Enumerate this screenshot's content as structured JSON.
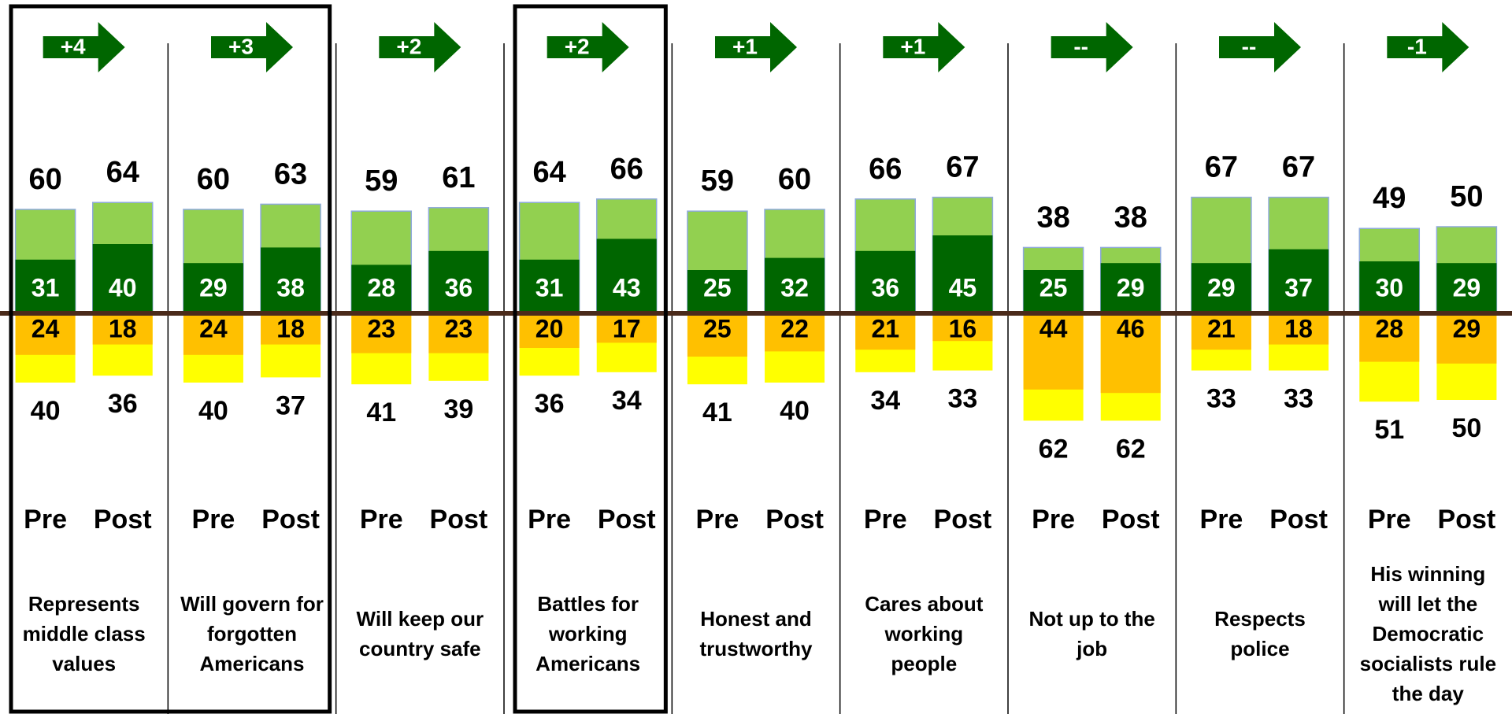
{
  "chart_data": {
    "type": "diverging_bar",
    "groups": [
      "Represents middle class values",
      "Will govern for forgotten Americans",
      "Will keep our country safe",
      "Battles for working Americans",
      "Honest and trustworthy",
      "Cares about working people",
      "Not up to the job",
      "Respects police",
      "His winning will let the Democratic socialists rule the day"
    ],
    "changes": [
      "+4",
      "+3",
      "+2",
      "+2",
      "+1",
      "+1",
      "--",
      "--",
      "-1"
    ],
    "periods": [
      "Pre",
      "Post"
    ],
    "total_positive": [
      [
        60,
        64
      ],
      [
        60,
        63
      ],
      [
        59,
        61
      ],
      [
        64,
        66
      ],
      [
        59,
        60
      ],
      [
        66,
        67
      ],
      [
        38,
        38
      ],
      [
        67,
        67
      ],
      [
        49,
        50
      ]
    ],
    "strong_positive": [
      [
        31,
        40
      ],
      [
        29,
        38
      ],
      [
        28,
        36
      ],
      [
        31,
        43
      ],
      [
        25,
        32
      ],
      [
        36,
        45
      ],
      [
        25,
        29
      ],
      [
        29,
        37
      ],
      [
        30,
        29
      ]
    ],
    "strong_negative": [
      [
        24,
        18
      ],
      [
        24,
        18
      ],
      [
        23,
        23
      ],
      [
        20,
        17
      ],
      [
        25,
        22
      ],
      [
        21,
        16
      ],
      [
        44,
        46
      ],
      [
        21,
        18
      ],
      [
        28,
        29
      ]
    ],
    "total_negative": [
      [
        40,
        36
      ],
      [
        40,
        37
      ],
      [
        41,
        39
      ],
      [
        36,
        34
      ],
      [
        41,
        40
      ],
      [
        34,
        33
      ],
      [
        62,
        62
      ],
      [
        33,
        33
      ],
      [
        51,
        50
      ]
    ],
    "colors": {
      "total_positive": "#92d050",
      "strong_positive": "#006600",
      "strong_negative": "#ffc000",
      "total_negative": "#ffff00",
      "arrow": "#006600"
    },
    "ylim": [
      -70,
      70
    ],
    "highlight_groups": [
      [
        0,
        1
      ],
      [
        3,
        3
      ]
    ]
  }
}
